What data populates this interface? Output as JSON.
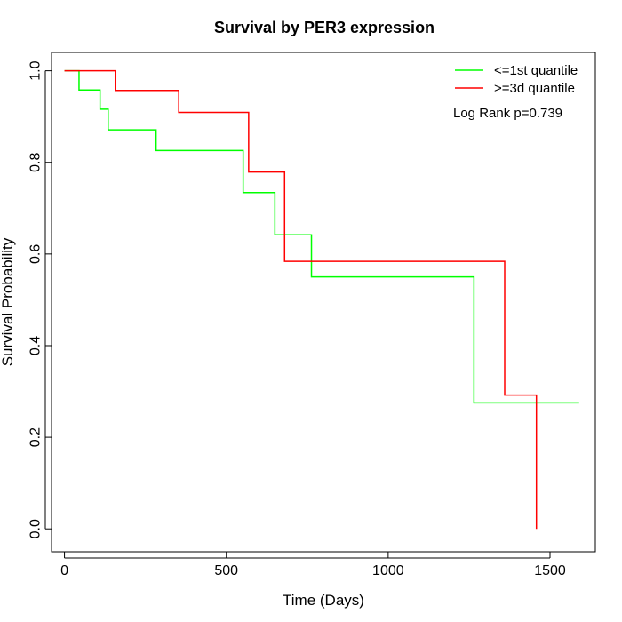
{
  "chart_data": {
    "type": "line",
    "subtype": "kaplan-meier-step",
    "title": "Survival by PER3 expression",
    "xlabel": "Time (Days)",
    "ylabel": "Survival Probability",
    "xlim": [
      -40,
      1640
    ],
    "ylim": [
      -0.05,
      1.04
    ],
    "x_ticks": [
      0,
      500,
      1000,
      1500
    ],
    "x_tick_labels": [
      "0",
      "500",
      "1000",
      "1500"
    ],
    "y_ticks": [
      0.0,
      0.2,
      0.4,
      0.6,
      0.8,
      1.0
    ],
    "y_tick_labels": [
      "0.0",
      "0.2",
      "0.4",
      "0.6",
      "0.8",
      "1.0"
    ],
    "grid": false,
    "legend_position": "top-right",
    "annotation": "Log Rank p=0.739",
    "series": [
      {
        "name": "<=1st quantile",
        "color": "#00ff00",
        "points": [
          [
            0,
            1.0
          ],
          [
            45,
            1.0
          ],
          [
            45,
            0.958
          ],
          [
            110,
            0.958
          ],
          [
            110,
            0.916
          ],
          [
            135,
            0.916
          ],
          [
            135,
            0.871
          ],
          [
            283,
            0.871
          ],
          [
            283,
            0.826
          ],
          [
            552,
            0.826
          ],
          [
            552,
            0.734
          ],
          [
            650,
            0.734
          ],
          [
            650,
            0.642
          ],
          [
            763,
            0.642
          ],
          [
            763,
            0.55
          ],
          [
            1265,
            0.55
          ],
          [
            1265,
            0.275
          ],
          [
            1590,
            0.275
          ]
        ]
      },
      {
        "name": ">=3d quantile",
        "color": "#ff0000",
        "points": [
          [
            0,
            1.0
          ],
          [
            157,
            1.0
          ],
          [
            157,
            0.957
          ],
          [
            353,
            0.957
          ],
          [
            353,
            0.909
          ],
          [
            569,
            0.909
          ],
          [
            569,
            0.779
          ],
          [
            680,
            0.779
          ],
          [
            680,
            0.584
          ],
          [
            1360,
            0.584
          ],
          [
            1360,
            0.292
          ],
          [
            1458,
            0.292
          ],
          [
            1458,
            0.0
          ]
        ]
      }
    ]
  }
}
